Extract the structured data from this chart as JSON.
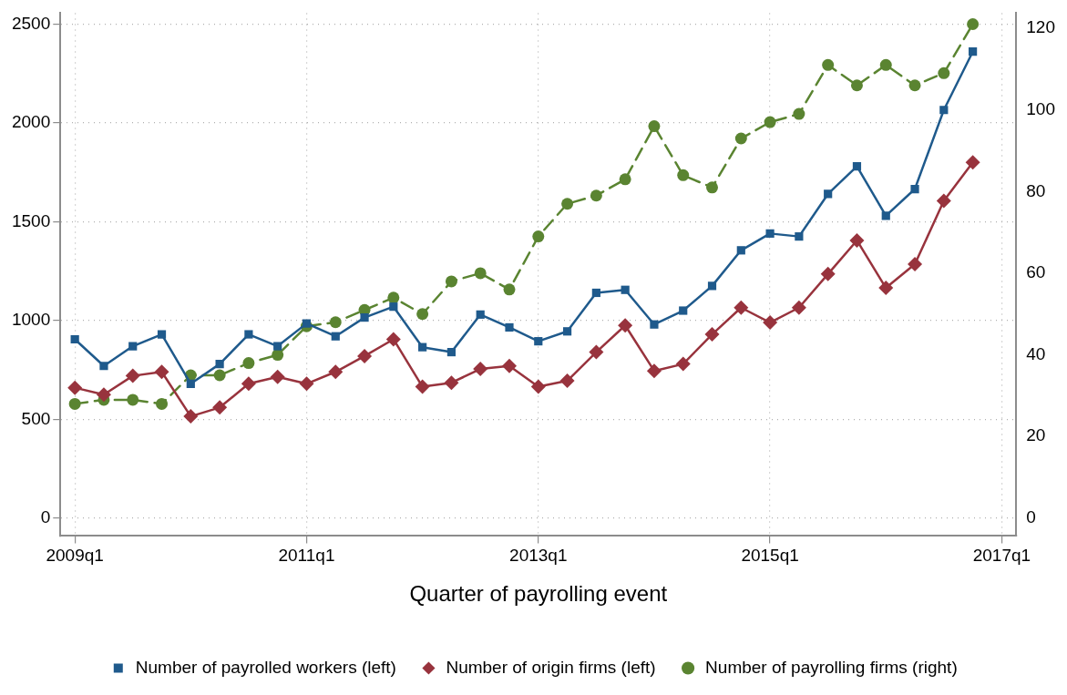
{
  "chart_data": {
    "type": "line",
    "xlabel": "Quarter of payrolling event",
    "categories": [
      "2009q1",
      null,
      null,
      null,
      null,
      null,
      null,
      null,
      "2011q1",
      null,
      null,
      null,
      null,
      null,
      null,
      null,
      "2013q1",
      null,
      null,
      null,
      null,
      null,
      null,
      null,
      "2015q1",
      null,
      null,
      null,
      null,
      null,
      null,
      null,
      "2017q1"
    ],
    "ylim": [
      -90,
      2555
    ],
    "yticks": [
      0,
      500,
      1000,
      1500,
      2000,
      2500
    ],
    "y2lim": [
      -4.35,
      123.7
    ],
    "y2ticks": [
      0,
      20,
      40,
      60,
      80,
      100,
      120
    ],
    "grid": true,
    "legend": "bottom",
    "series": [
      {
        "name": "Number of payrolled workers (left)",
        "color": "#1f5a8c",
        "marker": "square",
        "line_style": "solid",
        "values": [
          905,
          770,
          870,
          930,
          680,
          780,
          930,
          870,
          985,
          920,
          1015,
          1070,
          865,
          840,
          1030,
          965,
          895,
          945,
          1140,
          1155,
          980,
          1050,
          1175,
          1355,
          1440,
          1425,
          1640,
          1780,
          1530,
          1665,
          2065,
          2360,
          null
        ]
      },
      {
        "name": "Number of origin firms (left)",
        "color": "#98333d",
        "marker": "diamond",
        "line_style": "solid",
        "values": [
          660,
          625,
          720,
          740,
          515,
          560,
          680,
          715,
          680,
          740,
          820,
          905,
          665,
          685,
          755,
          770,
          665,
          695,
          840,
          975,
          745,
          780,
          930,
          1065,
          990,
          1065,
          1235,
          1405,
          1165,
          1285,
          1605,
          1800,
          null
        ]
      },
      {
        "name": "Number of payrolling firms (right)",
        "color": "#5a8431",
        "marker": "circle",
        "line_style": "dashed",
        "axis": "y2",
        "values": [
          28,
          29,
          29,
          28,
          35,
          35,
          38,
          40,
          47,
          48,
          51,
          54,
          50,
          58,
          60,
          56,
          69,
          77,
          79,
          83,
          96,
          84,
          81,
          93,
          97,
          99,
          111,
          106,
          111,
          106,
          109,
          121,
          null
        ]
      }
    ]
  }
}
